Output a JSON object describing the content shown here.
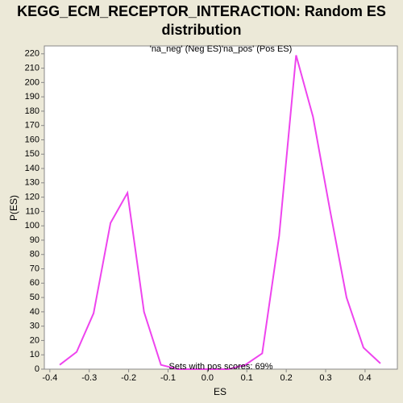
{
  "chart_data": {
    "type": "line",
    "title": "KEGG_ECM_RECEPTOR_INTERACTION: Random ES distribution",
    "legend": [
      {
        "label": "'na_neg' (Neg ES)",
        "color": "#3333cc"
      },
      {
        "label": "'na_pos' (Pos ES)",
        "color": "#cc3333"
      }
    ],
    "annotation": "Sets with pos scores: 69%",
    "xlabel": "ES",
    "ylabel": "P(ES)",
    "x": [
      -0.375,
      -0.332,
      -0.289,
      -0.246,
      -0.203,
      -0.161,
      -0.118,
      -0.075,
      -0.032,
      0.011,
      0.054,
      0.096,
      0.139,
      0.182,
      0.225,
      0.268,
      0.311,
      0.353,
      0.396,
      0.439
    ],
    "series": [
      {
        "name": "P(ES)",
        "color": "#ee44ee",
        "values": [
          3,
          12,
          39,
          102,
          123,
          40,
          3,
          0,
          0,
          0,
          0,
          3,
          11,
          93,
          219,
          176,
          111,
          50,
          15,
          4
        ]
      }
    ],
    "xlim": [
      -0.414,
      0.482
    ],
    "ylim": [
      0,
      225.5
    ],
    "xticks": [
      -0.4,
      -0.3,
      -0.2,
      -0.1,
      {
        "value": 0,
        "label": "0.0"
      },
      0.1,
      0.2,
      0.3,
      0.4
    ],
    "yticks": [
      0,
      10,
      20,
      30,
      40,
      50,
      60,
      70,
      80,
      90,
      100,
      110,
      120,
      130,
      140,
      150,
      160,
      170,
      180,
      190,
      200,
      210,
      220
    ],
    "grid": false
  }
}
